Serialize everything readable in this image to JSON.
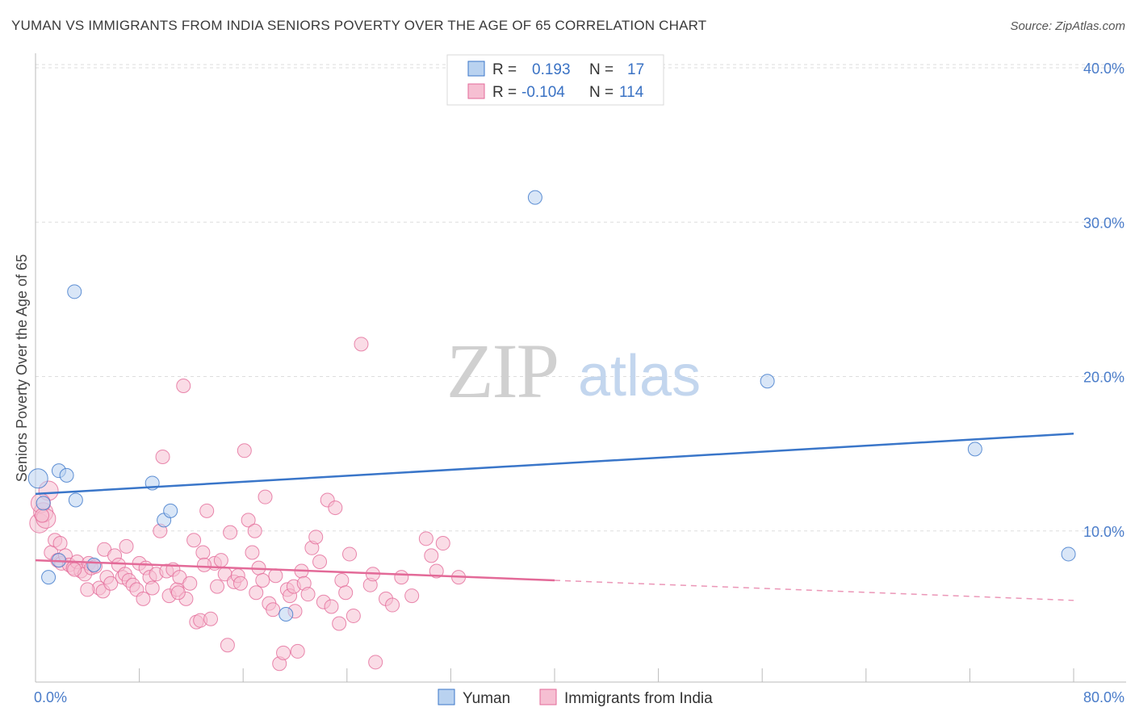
{
  "title": "YUMAN VS IMMIGRANTS FROM INDIA SENIORS POVERTY OVER THE AGE OF 65 CORRELATION CHART",
  "source": "Source: ZipAtlas.com",
  "watermark": {
    "zip": "ZIP",
    "atlas": "atlas"
  },
  "colors": {
    "blue": "#3a76c9",
    "blue_fill": "#b9d2f0",
    "pink": "#e36a98",
    "pink_fill": "#f6bfd2"
  },
  "chart_data": {
    "type": "scatter",
    "xlabel": "",
    "ylabel": "Seniors Poverty Over the Age of 65",
    "xlim": [
      0,
      80
    ],
    "ylim": [
      0,
      40
    ],
    "x_tick_labels": [
      "0.0%",
      "80.0%"
    ],
    "y_ticks": [
      10,
      20,
      30,
      40
    ],
    "y_tick_labels": [
      "10.0%",
      "20.0%",
      "30.0%",
      "40.0%"
    ],
    "grid": true,
    "legend_stats": [
      {
        "r_label": "R =",
        "r_value": "0.193",
        "n_label": "N =",
        "n_value": "17"
      },
      {
        "r_label": "R =",
        "r_value": "-0.104",
        "n_label": "N =",
        "n_value": "114"
      }
    ],
    "series": [
      {
        "name": "Yuman",
        "color": "#3a76c9",
        "trend": {
          "x": [
            0,
            80
          ],
          "y": [
            12.4,
            16.3
          ],
          "solid_until": 80
        },
        "points": [
          [
            0.2,
            13.4
          ],
          [
            0.6,
            11.8
          ],
          [
            1.8,
            13.9
          ],
          [
            2.4,
            13.6
          ],
          [
            3.1,
            12.0
          ],
          [
            3.0,
            25.5
          ],
          [
            1.0,
            7.0
          ],
          [
            1.8,
            8.1
          ],
          [
            9.0,
            13.1
          ],
          [
            9.9,
            10.7
          ],
          [
            10.4,
            11.3
          ],
          [
            19.3,
            4.6
          ],
          [
            38.5,
            31.6
          ],
          [
            56.4,
            19.7
          ],
          [
            72.4,
            15.3
          ],
          [
            79.6,
            8.5
          ],
          [
            4.5,
            7.8
          ]
        ]
      },
      {
        "name": "Immigrants from India",
        "color": "#e36a98",
        "trend": {
          "x": [
            0,
            80
          ],
          "y": [
            8.1,
            5.5
          ],
          "solid_until": 40
        },
        "points": [
          [
            0.3,
            10.5
          ],
          [
            0.6,
            11.2
          ],
          [
            1.0,
            12.6
          ],
          [
            0.4,
            11.8
          ],
          [
            0.8,
            10.8
          ],
          [
            1.2,
            8.6
          ],
          [
            1.5,
            9.4
          ],
          [
            1.7,
            8.1
          ],
          [
            2.0,
            7.9
          ],
          [
            1.9,
            9.2
          ],
          [
            2.3,
            8.4
          ],
          [
            2.6,
            7.8
          ],
          [
            2.9,
            7.6
          ],
          [
            3.2,
            8.0
          ],
          [
            3.5,
            7.4
          ],
          [
            3.8,
            7.2
          ],
          [
            4.1,
            7.9
          ],
          [
            4.3,
            7.6
          ],
          [
            4.6,
            7.7
          ],
          [
            4.9,
            6.3
          ],
          [
            5.2,
            6.1
          ],
          [
            5.5,
            7.0
          ],
          [
            5.3,
            8.8
          ],
          [
            5.8,
            6.6
          ],
          [
            6.1,
            8.4
          ],
          [
            6.4,
            7.8
          ],
          [
            6.7,
            7.0
          ],
          [
            6.9,
            7.2
          ],
          [
            7.2,
            6.8
          ],
          [
            7.5,
            6.5
          ],
          [
            7.8,
            6.2
          ],
          [
            8.0,
            7.9
          ],
          [
            8.3,
            5.6
          ],
          [
            8.5,
            7.6
          ],
          [
            8.8,
            7.0
          ],
          [
            9.0,
            6.3
          ],
          [
            9.3,
            7.2
          ],
          [
            9.6,
            10.0
          ],
          [
            9.8,
            14.8
          ],
          [
            10.1,
            7.4
          ],
          [
            10.3,
            5.8
          ],
          [
            10.6,
            7.5
          ],
          [
            10.9,
            6.2
          ],
          [
            11.1,
            7.0
          ],
          [
            11.4,
            19.4
          ],
          [
            11.6,
            5.6
          ],
          [
            11.9,
            6.6
          ],
          [
            12.2,
            9.4
          ],
          [
            12.4,
            4.1
          ],
          [
            12.7,
            4.2
          ],
          [
            12.9,
            8.6
          ],
          [
            13.2,
            11.3
          ],
          [
            13.5,
            4.3
          ],
          [
            13.8,
            7.9
          ],
          [
            14.0,
            6.4
          ],
          [
            14.3,
            8.1
          ],
          [
            14.6,
            7.2
          ],
          [
            14.8,
            2.6
          ],
          [
            15.0,
            9.9
          ],
          [
            15.3,
            6.7
          ],
          [
            15.6,
            7.1
          ],
          [
            15.8,
            6.6
          ],
          [
            16.1,
            15.2
          ],
          [
            16.4,
            10.7
          ],
          [
            16.7,
            8.6
          ],
          [
            16.9,
            10.0
          ],
          [
            17.2,
            7.6
          ],
          [
            17.5,
            6.8
          ],
          [
            17.7,
            12.2
          ],
          [
            18.0,
            5.3
          ],
          [
            18.3,
            4.9
          ],
          [
            18.5,
            7.1
          ],
          [
            18.8,
            1.4
          ],
          [
            19.1,
            2.1
          ],
          [
            19.4,
            6.2
          ],
          [
            19.6,
            5.8
          ],
          [
            19.9,
            6.4
          ],
          [
            20.2,
            2.2
          ],
          [
            20.5,
            7.4
          ],
          [
            20.7,
            6.6
          ],
          [
            21.0,
            5.9
          ],
          [
            21.3,
            8.9
          ],
          [
            21.6,
            9.6
          ],
          [
            21.9,
            8.0
          ],
          [
            22.2,
            5.4
          ],
          [
            22.5,
            12.0
          ],
          [
            22.8,
            5.1
          ],
          [
            23.1,
            11.5
          ],
          [
            23.4,
            4.0
          ],
          [
            23.6,
            6.8
          ],
          [
            23.9,
            6.0
          ],
          [
            24.2,
            8.5
          ],
          [
            24.5,
            4.5
          ],
          [
            25.1,
            22.1
          ],
          [
            25.8,
            6.5
          ],
          [
            26.2,
            1.5
          ],
          [
            27.0,
            5.6
          ],
          [
            27.5,
            5.2
          ],
          [
            28.2,
            7.0
          ],
          [
            29.0,
            5.8
          ],
          [
            30.1,
            9.5
          ],
          [
            30.5,
            8.4
          ],
          [
            30.9,
            7.4
          ],
          [
            31.4,
            9.2
          ],
          [
            32.6,
            7.0
          ],
          [
            0.5,
            11.0
          ],
          [
            3.0,
            7.5
          ],
          [
            4.0,
            6.2
          ],
          [
            7.0,
            9.0
          ],
          [
            11.0,
            6.0
          ],
          [
            13.0,
            7.8
          ],
          [
            17.0,
            6.0
          ],
          [
            20.0,
            4.8
          ],
          [
            26.0,
            7.2
          ]
        ]
      }
    ]
  }
}
